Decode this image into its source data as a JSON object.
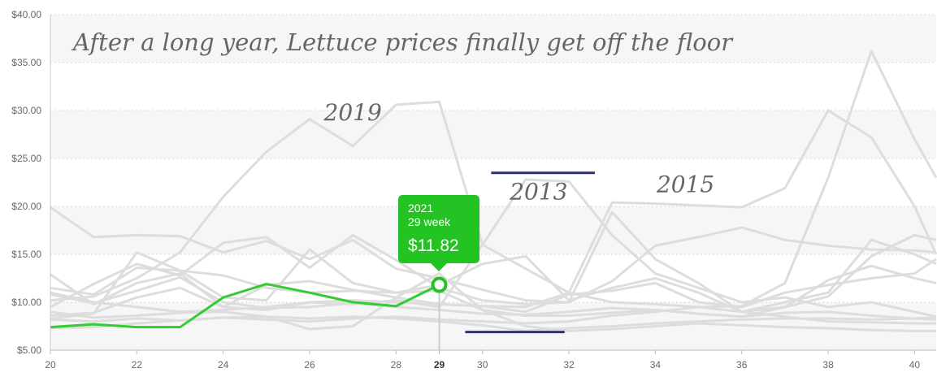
{
  "chart_data": {
    "type": "line",
    "title": "After a long year, Lettuce prices finally get off the floor",
    "xlabel": "",
    "ylabel": "",
    "x_ticks": [
      20,
      22,
      24,
      26,
      28,
      29,
      30,
      32,
      34,
      36,
      38,
      40
    ],
    "x_active_tick": 29,
    "xlim": [
      20,
      40.5
    ],
    "ylim": [
      5,
      40
    ],
    "y_ticks": [
      "$5.00",
      "$10.00",
      "$15.00",
      "$20.00",
      "$25.00",
      "$30.00",
      "$35.00",
      "$40.00"
    ],
    "grid": "horizontal dotted",
    "x": [
      20,
      21,
      22,
      23,
      24,
      25,
      26,
      27,
      28,
      29,
      30,
      31,
      32,
      33,
      34,
      35,
      36,
      37,
      38,
      39,
      40,
      40.5
    ],
    "highlight_series": {
      "name": "2021",
      "color": "#33cc33",
      "values": [
        7.4,
        7.7,
        7.4,
        7.4,
        10.5,
        11.9,
        11.0,
        10.0,
        9.6,
        11.82
      ]
    },
    "background_series_color": "#dddddd",
    "background_series": [
      {
        "values": [
          10.2,
          10.6,
          12.5,
          15.2,
          21.0,
          25.7,
          29.1,
          26.3,
          30.6,
          30.9,
          16.0,
          13.5,
          11.0,
          10.0,
          9.8,
          9.5,
          9.0,
          10.0,
          11.0,
          16.5,
          15.0,
          14.0
        ]
      },
      {
        "values": [
          12.9,
          9.8,
          12.0,
          13.0,
          9.5,
          9.2,
          10.0,
          9.8,
          10.2,
          9.5,
          16.0,
          22.8,
          22.6,
          17.0,
          13.0,
          11.5,
          10.0,
          10.5,
          9.5,
          10.0,
          9.0,
          8.5
        ]
      },
      {
        "values": [
          11.0,
          10.0,
          9.5,
          9.0,
          9.2,
          9.5,
          10.0,
          10.2,
          10.0,
          9.8,
          9.6,
          9.5,
          11.0,
          20.4,
          20.3,
          20.1,
          19.9,
          21.9,
          30.0,
          27.2,
          20.0,
          15.0
        ]
      },
      {
        "values": [
          8.2,
          8.0,
          8.3,
          8.1,
          8.4,
          8.2,
          8.0,
          8.3,
          8.5,
          8.2,
          8.0,
          7.8,
          8.0,
          8.6,
          9.0,
          9.5,
          9.6,
          12.0,
          23.0,
          36.2,
          27.0,
          23.0
        ]
      },
      {
        "values": [
          19.9,
          16.8,
          17.0,
          16.9,
          15.2,
          16.4,
          14.5,
          16.5,
          13.5,
          12.5,
          11.3,
          10.2,
          10.0,
          12.2,
          15.9,
          16.8,
          17.8,
          16.5,
          15.9,
          15.5,
          15.4,
          15.2
        ]
      },
      {
        "values": [
          9.5,
          11.9,
          14.0,
          12.8,
          16.2,
          16.8,
          13.6,
          17.0,
          14.4,
          11.5,
          10.2,
          9.8,
          10.0,
          19.4,
          14.5,
          12.0,
          9.0,
          8.5,
          8.0,
          7.9,
          7.8,
          7.8
        ]
      },
      {
        "values": [
          8.3,
          8.8,
          15.2,
          13.3,
          10.5,
          10.2,
          15.5,
          12.0,
          11.0,
          11.8,
          14.0,
          14.8,
          10.2,
          11.5,
          12.5,
          11.0,
          9.0,
          9.5,
          12.3,
          13.8,
          12.5,
          12.0
        ]
      },
      {
        "values": [
          7.3,
          7.4,
          7.8,
          8.1,
          8.4,
          8.5,
          8.3,
          8.5,
          8.3,
          8.0,
          7.6,
          7.0,
          7.3,
          7.5,
          7.8,
          8.0,
          8.2,
          8.3,
          8.3,
          8.2,
          8.3,
          8.4
        ]
      },
      {
        "values": [
          10.8,
          9.9,
          11.2,
          12.6,
          10.0,
          9.4,
          9.5,
          9.9,
          9.5,
          9.2,
          8.8,
          8.7,
          9.0,
          9.4,
          9.2,
          8.8,
          8.5,
          8.9,
          9.0,
          8.6,
          8.3,
          8.2
        ]
      },
      {
        "values": [
          9.0,
          8.4,
          8.6,
          8.9,
          9.0,
          8.5,
          7.2,
          7.5,
          10.5,
          13.0,
          9.2,
          7.5,
          7.0,
          7.2,
          7.5,
          7.8,
          7.6,
          7.4,
          7.3,
          7.1,
          7.0,
          7.0
        ]
      },
      {
        "values": [
          11.5,
          10.8,
          13.6,
          13.3,
          12.8,
          11.5,
          11.0,
          11.2,
          11.0,
          11.2,
          9.2,
          8.6,
          8.6,
          8.9,
          9.2,
          8.8,
          8.5,
          9.5,
          10.6,
          14.8,
          17.0,
          16.5
        ]
      },
      {
        "values": [
          8.6,
          8.9,
          10.5,
          11.5,
          9.5,
          11.8,
          12.2,
          11.3,
          10.5,
          9.8,
          9.6,
          9.0,
          10.8,
          11.2,
          12.0,
          10.0,
          9.5,
          11.0,
          11.8,
          12.5,
          13.0,
          14.5
        ]
      }
    ],
    "annotations": [
      {
        "text": "2019",
        "x": 27.0,
        "y": 29.0
      },
      {
        "text": "2013",
        "x": 31.3,
        "y": 20.7
      },
      {
        "text": "2015",
        "x": 34.7,
        "y": 21.5
      }
    ],
    "reference_lines": [
      {
        "color": "#2b2f86",
        "x0": 30.2,
        "x1": 32.6,
        "y": 23.5
      },
      {
        "color": "#2b2f86",
        "x0": 29.6,
        "x1": 31.9,
        "y": 6.9
      }
    ],
    "tooltip": {
      "year": "2021",
      "week_label": "29 week",
      "value_label": "$11.82",
      "x": 29,
      "y": 11.82
    }
  }
}
